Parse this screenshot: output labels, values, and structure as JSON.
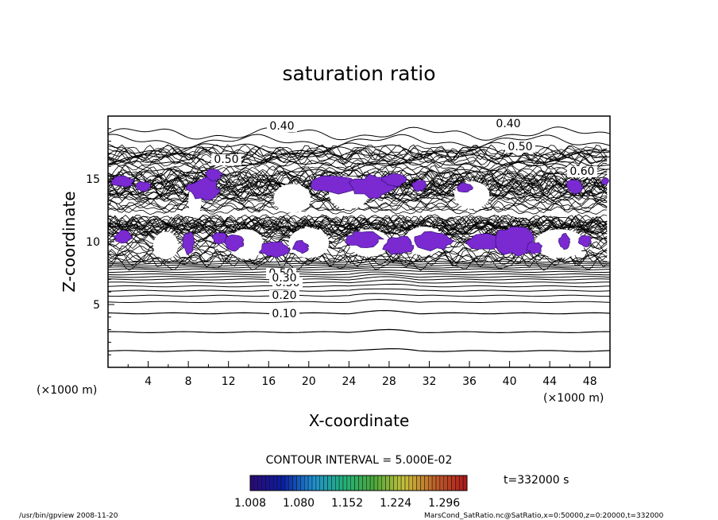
{
  "chart_data": {
    "type": "contour",
    "title": "saturation ratio",
    "xlabel": "X-coordinate",
    "ylabel": "Z-coordinate",
    "x_unit": "(×1000 m)",
    "z_unit": "(×1000 m)",
    "xlim": [
      0,
      50
    ],
    "ylim": [
      0,
      20
    ],
    "x_ticks": [
      "4",
      "8",
      "12",
      "16",
      "20",
      "24",
      "28",
      "32",
      "36",
      "40",
      "44",
      "48"
    ],
    "y_ticks": [
      "5",
      "10",
      "15"
    ],
    "contour_labels": [
      "0.40",
      "0.40",
      "0.50",
      "0.50",
      "0.60",
      "0.50",
      "0.50",
      "0.30",
      "0.20",
      "0.10"
    ],
    "contour_interval_text": "CONTOUR INTERVAL = 5.000E-02",
    "time_label": "t=332000 s",
    "colorbar": {
      "labels": [
        "1.008",
        "1.080",
        "1.152",
        "1.224",
        "1.296"
      ],
      "min": 1.008,
      "max": 1.33,
      "colors": [
        "#2a0a7a",
        "#0a1ea0",
        "#1f8fd0",
        "#22b07a",
        "#4aa83a",
        "#c8c03a",
        "#c0602a",
        "#b01a1a"
      ]
    },
    "supersaturated_fill": "#7a2ad0",
    "grid": false
  },
  "footer": {
    "program": "/usr/bin/gpview   2008-11-20",
    "source": "MarsCond_SatRatio.nc@SatRatio,x=0:50000,z=0:20000,t=332000"
  }
}
